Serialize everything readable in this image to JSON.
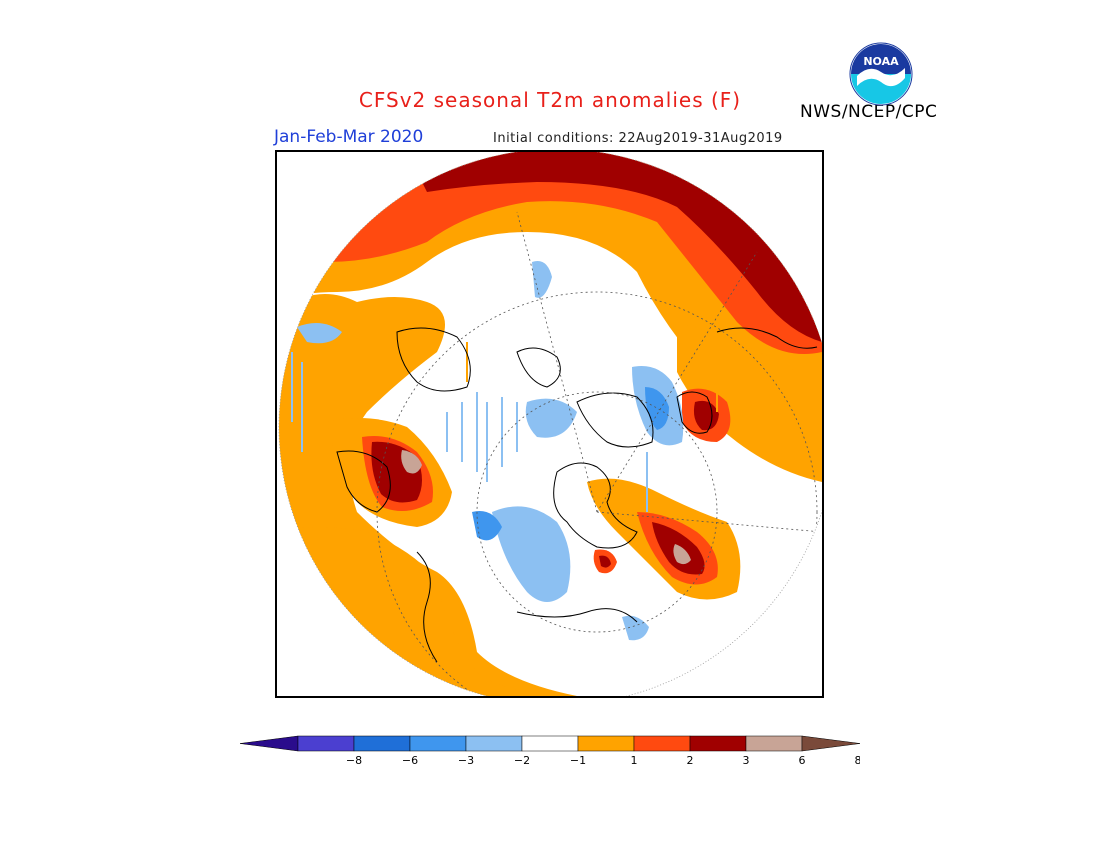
{
  "title": "CFSv2 seasonal T2m anomalies (F)",
  "period": "Jan-Feb-Mar 2020",
  "initial_conditions": "Initial conditions: 22Aug2019-31Aug2019",
  "agency": "NWS/NCEP/CPC",
  "logo_text": "NOAA",
  "colors": {
    "title": "#e8201a",
    "period": "#1f3fd8",
    "bins": [
      "#2a0c8c",
      "#4b3fd0",
      "#1f6fd8",
      "#3f96ee",
      "#8cc0f2",
      "#ffffff",
      "#ffa300",
      "#ff4a10",
      "#a00000",
      "#c8a496",
      "#7a4a3a"
    ]
  },
  "colorbar": {
    "ticks": [
      "-8",
      "-6",
      "-3",
      "-2",
      "-1",
      "1",
      "2",
      "3",
      "6",
      "8"
    ]
  }
}
